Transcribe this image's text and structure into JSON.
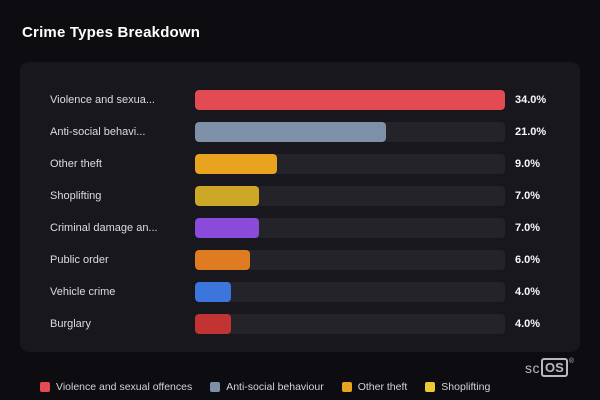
{
  "page": {
    "title": "Crime Types Breakdown"
  },
  "chart_data": {
    "type": "bar",
    "orientation": "horizontal",
    "title": "Crime Types Breakdown",
    "categories": [
      "Violence and sexua...",
      "Anti-social behavi...",
      "Other theft",
      "Shoplifting",
      "Criminal damage an...",
      "Public order",
      "Vehicle crime",
      "Burglary"
    ],
    "values": [
      34.0,
      21.0,
      9.0,
      7.0,
      7.0,
      6.0,
      4.0,
      4.0
    ],
    "value_labels": [
      "34.0%",
      "21.0%",
      "9.0%",
      "7.0%",
      "7.0%",
      "6.0%",
      "4.0%",
      "4.0%"
    ],
    "colors": [
      "#e24b52",
      "#7e90a8",
      "#e8a31f",
      "#cda827",
      "#8a4bdb",
      "#df7c21",
      "#3c76dd",
      "#c23434"
    ],
    "xlim": [
      0,
      34
    ],
    "grid": false,
    "legend_position": "bottom"
  },
  "legend": {
    "items": [
      {
        "label": "Violence and sexual offences",
        "color": "#e24b52"
      },
      {
        "label": "Anti-social behaviour",
        "color": "#7e90a8"
      },
      {
        "label": "Other theft",
        "color": "#e8a31f"
      },
      {
        "label": "Shoplifting",
        "color": "#eec832"
      }
    ]
  },
  "logo": {
    "prefix": "sc",
    "boxed": "OS",
    "registered": "®"
  }
}
